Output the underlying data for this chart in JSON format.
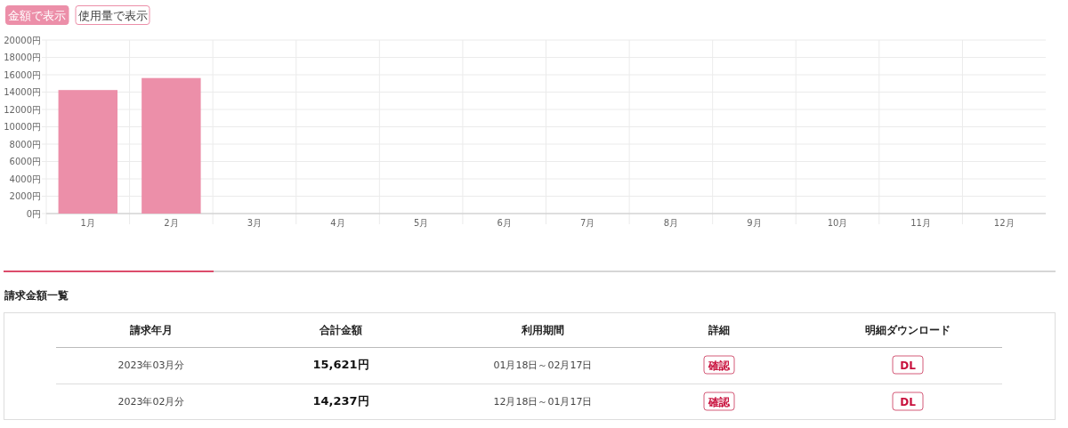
{
  "chart_data": [
    {
      "type": "bar",
      "categories": [
        "1月",
        "2月",
        "3月",
        "4月",
        "5月",
        "6月",
        "7月",
        "8月",
        "9月",
        "10月",
        "11月",
        "12月"
      ],
      "values": [
        14237,
        15621,
        null,
        null,
        null,
        null,
        null,
        null,
        null,
        null,
        null,
        null
      ],
      "color": "#ec8fa9",
      "ylim": [
        0,
        20000
      ],
      "yticks": [
        {
          "value": 0,
          "label": "0円"
        },
        {
          "value": 2000,
          "label": "2000円"
        },
        {
          "value": 4000,
          "label": "4000円"
        },
        {
          "value": 6000,
          "label": "6000円"
        },
        {
          "value": 8000,
          "label": "8000円"
        },
        {
          "value": 10000,
          "label": "10000円"
        },
        {
          "value": 12000,
          "label": "12000円"
        },
        {
          "value": 14000,
          "label": "14000円"
        },
        {
          "value": 16000,
          "label": "16000円"
        },
        {
          "value": 18000,
          "label": "18000円"
        },
        {
          "value": 20000,
          "label": "20000円"
        }
      ],
      "grid": true,
      "annotations": [
        "金額で表示",
        "使用量で表示"
      ]
    },
    {
      "type": "other",
      "title": "請求金額一覧",
      "categories": [
        "請求年月",
        "合計金額",
        "利用期間",
        "詳細",
        "明細ダウンロード"
      ],
      "annotations": [
        "2023年03月分",
        "15,621円",
        "01月18日～02月17日",
        "確認",
        "DL",
        "2023年02月分",
        "14,237円",
        "12月18日～01月17日",
        "確認",
        "DL"
      ]
    }
  ]
}
